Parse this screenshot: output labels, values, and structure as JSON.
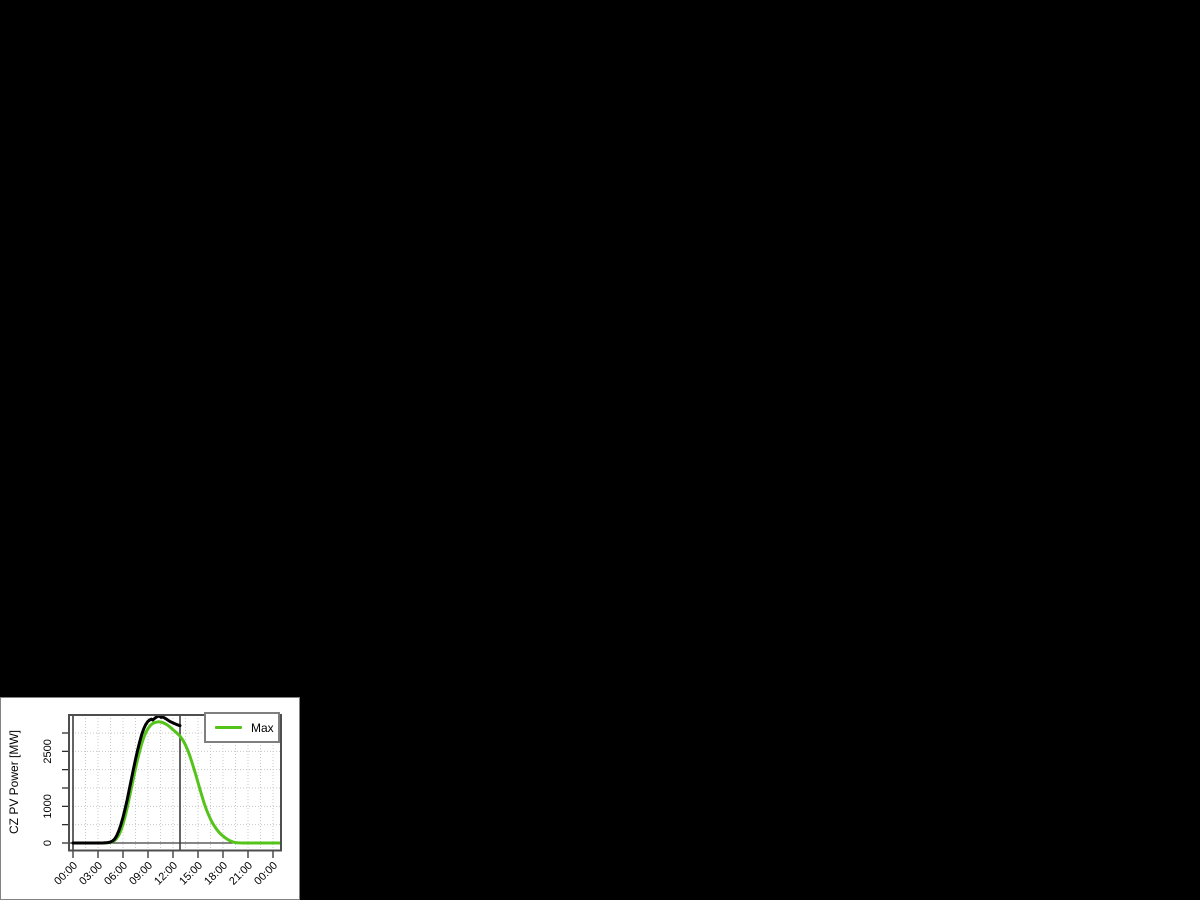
{
  "page": {
    "background": "#000000"
  },
  "panel": {
    "background": "#ffffff",
    "border_color": "#828282"
  },
  "legend": {
    "items": [
      {
        "label": "Max",
        "color": "#55c41a"
      }
    ]
  },
  "chart_data": {
    "type": "line",
    "title": "",
    "xlabel": "",
    "ylabel": "CZ PV Power [MW]",
    "xlim_hours": [
      0,
      24
    ],
    "ylim": [
      0,
      3464
    ],
    "legend_position": "topright",
    "grid": {
      "show": true,
      "style": "dotted",
      "color": "#c8c8c8",
      "v_step_hours": 1.5,
      "h_step": 500
    },
    "marker_color": "#3d3d3d",
    "hlines": [
      0
    ],
    "vlines_hours": [
      0,
      12.84
    ],
    "x_ticks": [
      {
        "hour": 0,
        "label": "00:00"
      },
      {
        "hour": 3,
        "label": "03:00"
      },
      {
        "hour": 6,
        "label": "06:00"
      },
      {
        "hour": 9,
        "label": "09:00"
      },
      {
        "hour": 12,
        "label": "12:00"
      },
      {
        "hour": 15,
        "label": "15:00"
      },
      {
        "hour": 18,
        "label": "18:00"
      },
      {
        "hour": 21,
        "label": "21:00"
      },
      {
        "hour": 24,
        "label": "00:00"
      }
    ],
    "y_ticks": [
      {
        "value": 0,
        "label": "0"
      },
      {
        "value": 500,
        "label": ""
      },
      {
        "value": 1000,
        "label": "1000"
      },
      {
        "value": 1500,
        "label": ""
      },
      {
        "value": 2000,
        "label": ""
      },
      {
        "value": 2500,
        "label": "2500"
      },
      {
        "value": 3000,
        "label": ""
      }
    ],
    "series": [
      {
        "name": "Max",
        "color": "#55c41a",
        "width": 3,
        "points": [
          [
            0,
            0
          ],
          [
            0.5,
            0
          ],
          [
            1,
            0
          ],
          [
            1.5,
            0
          ],
          [
            2,
            0
          ],
          [
            2.5,
            0
          ],
          [
            3,
            0
          ],
          [
            3.5,
            0
          ],
          [
            3.75,
            2
          ],
          [
            4,
            5
          ],
          [
            4.25,
            10
          ],
          [
            4.5,
            18
          ],
          [
            4.75,
            35
          ],
          [
            5,
            65
          ],
          [
            5.25,
            125
          ],
          [
            5.5,
            215
          ],
          [
            5.75,
            340
          ],
          [
            6,
            510
          ],
          [
            6.25,
            720
          ],
          [
            6.5,
            960
          ],
          [
            6.75,
            1220
          ],
          [
            7,
            1490
          ],
          [
            7.25,
            1760
          ],
          [
            7.5,
            2030
          ],
          [
            7.75,
            2280
          ],
          [
            8,
            2510
          ],
          [
            8.25,
            2710
          ],
          [
            8.5,
            2880
          ],
          [
            8.75,
            3020
          ],
          [
            9,
            3120
          ],
          [
            9.25,
            3200
          ],
          [
            9.5,
            3250
          ],
          [
            9.75,
            3280
          ],
          [
            10,
            3295
          ],
          [
            10.25,
            3305
          ],
          [
            10.5,
            3300
          ],
          [
            10.75,
            3285
          ],
          [
            11,
            3260
          ],
          [
            11.25,
            3230
          ],
          [
            11.5,
            3190
          ],
          [
            11.75,
            3140
          ],
          [
            12,
            3090
          ],
          [
            12.25,
            3040
          ],
          [
            12.5,
            2990
          ],
          [
            12.75,
            2940
          ],
          [
            13,
            2870
          ],
          [
            13.25,
            2780
          ],
          [
            13.5,
            2670
          ],
          [
            13.75,
            2540
          ],
          [
            14,
            2390
          ],
          [
            14.25,
            2220
          ],
          [
            14.5,
            2040
          ],
          [
            14.75,
            1850
          ],
          [
            15,
            1650
          ],
          [
            15.25,
            1450
          ],
          [
            15.5,
            1260
          ],
          [
            15.75,
            1080
          ],
          [
            16,
            920
          ],
          [
            16.25,
            780
          ],
          [
            16.5,
            650
          ],
          [
            16.75,
            540
          ],
          [
            17,
            450
          ],
          [
            17.25,
            370
          ],
          [
            17.5,
            300
          ],
          [
            17.75,
            240
          ],
          [
            18,
            190
          ],
          [
            18.25,
            145
          ],
          [
            18.5,
            105
          ],
          [
            18.75,
            70
          ],
          [
            19,
            45
          ],
          [
            19.25,
            25
          ],
          [
            19.5,
            12
          ],
          [
            19.75,
            5
          ],
          [
            20,
            2
          ],
          [
            20.5,
            0
          ],
          [
            21,
            0
          ],
          [
            22,
            0
          ],
          [
            23,
            0
          ],
          [
            24,
            0
          ],
          [
            24.9,
            0
          ]
        ]
      },
      {
        "name": "",
        "color": "#000000",
        "width": 3,
        "points": [
          [
            0,
            0
          ],
          [
            0.5,
            0
          ],
          [
            1,
            0
          ],
          [
            1.5,
            0
          ],
          [
            2,
            0
          ],
          [
            2.5,
            0
          ],
          [
            3,
            0
          ],
          [
            3.5,
            0
          ],
          [
            3.75,
            2
          ],
          [
            4,
            6
          ],
          [
            4.25,
            14
          ],
          [
            4.5,
            28
          ],
          [
            4.75,
            55
          ],
          [
            5,
            110
          ],
          [
            5.25,
            200
          ],
          [
            5.5,
            330
          ],
          [
            5.75,
            500
          ],
          [
            6,
            700
          ],
          [
            6.25,
            930
          ],
          [
            6.5,
            1180
          ],
          [
            6.75,
            1450
          ],
          [
            7,
            1730
          ],
          [
            7.25,
            2010
          ],
          [
            7.5,
            2280
          ],
          [
            7.75,
            2530
          ],
          [
            8,
            2760
          ],
          [
            8.25,
            2960
          ],
          [
            8.5,
            3120
          ],
          [
            8.75,
            3240
          ],
          [
            9,
            3320
          ],
          [
            9.2,
            3355
          ],
          [
            9.4,
            3375
          ],
          [
            9.55,
            3355
          ],
          [
            9.7,
            3380
          ],
          [
            9.85,
            3410
          ],
          [
            10,
            3430
          ],
          [
            10.15,
            3455
          ],
          [
            10.3,
            3460
          ],
          [
            10.45,
            3445
          ],
          [
            10.6,
            3425
          ],
          [
            10.75,
            3440
          ],
          [
            10.9,
            3420
          ],
          [
            11.1,
            3395
          ],
          [
            11.3,
            3365
          ],
          [
            11.5,
            3335
          ],
          [
            11.7,
            3305
          ],
          [
            11.9,
            3285
          ],
          [
            12.1,
            3265
          ],
          [
            12.3,
            3245
          ],
          [
            12.5,
            3225
          ],
          [
            12.7,
            3210
          ],
          [
            12.84,
            3200
          ]
        ]
      }
    ]
  }
}
